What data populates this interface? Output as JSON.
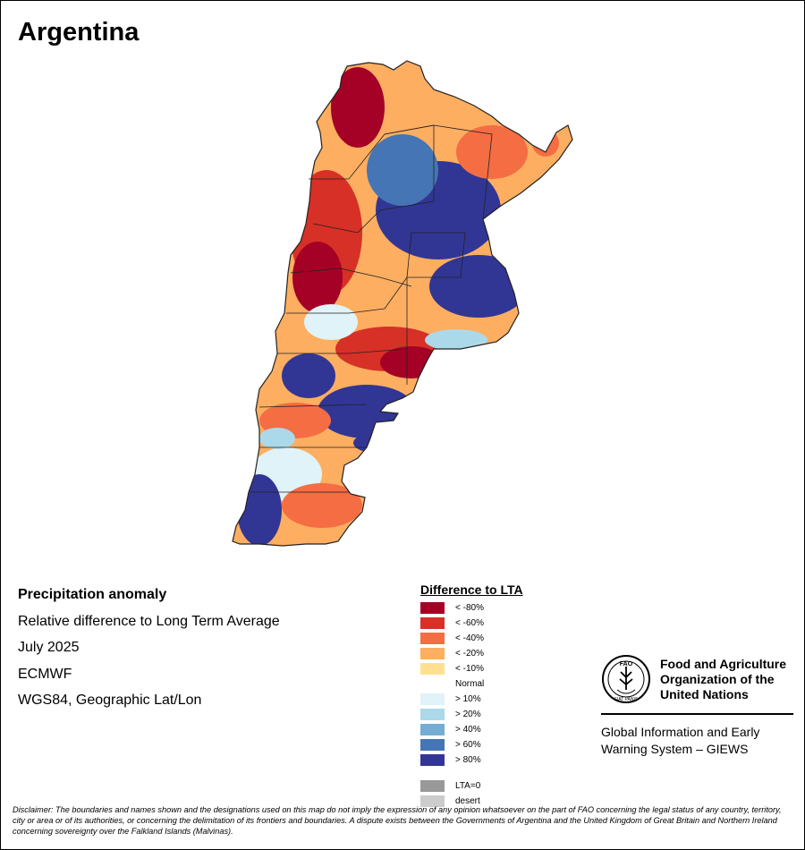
{
  "header": {
    "title": "Argentina"
  },
  "meta": {
    "heading": "Precipitation anomaly",
    "description": "Relative difference to Long Term Average",
    "period": "July 2025",
    "source": "ECMWF",
    "projection": "WGS84, Geographic Lat/Lon"
  },
  "legend": {
    "title": "Difference to LTA",
    "items": [
      {
        "label": "< -80%",
        "color": "#a50026"
      },
      {
        "label": "< -60%",
        "color": "#d73027"
      },
      {
        "label": "< -40%",
        "color": "#f46d43"
      },
      {
        "label": "< -20%",
        "color": "#fdae61"
      },
      {
        "label": "< -10%",
        "color": "#fee090"
      },
      {
        "label": "Normal",
        "color": null
      },
      {
        "label": "> 10%",
        "color": "#e0f3f8"
      },
      {
        "label": "> 20%",
        "color": "#abd9e9"
      },
      {
        "label": "> 40%",
        "color": "#74add1"
      },
      {
        "label": "> 60%",
        "color": "#4575b4"
      },
      {
        "label": "> 80%",
        "color": "#313695"
      }
    ],
    "extra": [
      {
        "label": "LTA=0",
        "color": "#999999"
      },
      {
        "label": "desert",
        "color": "#cccccc"
      }
    ]
  },
  "logo": {
    "org_name_1": "Food and Agriculture",
    "org_name_2": "Organization of the",
    "org_name_3": "United Nations",
    "emblem_text": "FIAT PANIS",
    "emblem_letters": "FAO",
    "system_1": "Global Information and Early",
    "system_2": "Warning System – GIEWS"
  },
  "disclaimer": "Disclaimer: The boundaries and names shown and the designations used on this map do not imply the expression of any opinion whatsoever on the part of FAO concerning the legal status of any country, territory, city or area or of its authorities, or concerning the delimitation of its frontiers and boundaries. A dispute exists between the Governments of Argentina and the United Kingdom of Great Britain and Northern Ireland concerning sovereignty over the Falkland Islands (Malvinas)."
}
